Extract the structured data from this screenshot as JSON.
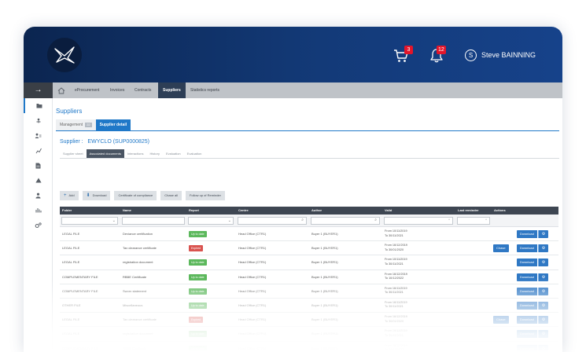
{
  "header": {
    "cart_count": "3",
    "notif_count": "12",
    "user_initial": "S",
    "user_name": "Steve BAINNING",
    "gradient_start": "#0b2550",
    "gradient_end": "#16428a"
  },
  "nav": {
    "items": [
      {
        "label": "eProcurement"
      },
      {
        "label": "Invoices"
      },
      {
        "label": "Contracts"
      },
      {
        "label": "Suppliers"
      },
      {
        "label": "Statistics reports"
      }
    ],
    "active_color": "#2d3e56"
  },
  "sidebar": {
    "icons": [
      "folder-icon",
      "tree-icon",
      "people-icon",
      "chart-line-icon",
      "document-icon",
      "warning-icon",
      "user-icon",
      "bar-chart-icon",
      "settings-icon"
    ]
  },
  "page": {
    "title": "Suppliers",
    "tabs": [
      {
        "label": "Management",
        "count": "22"
      },
      {
        "label": "Supplier detail"
      }
    ],
    "supplier_label": "Supplier :",
    "supplier_name": "EWYCLO (SUP0000825)",
    "subtabs": [
      "Supplier sheet",
      "Associated documents",
      "Interactions",
      "History",
      "Evaluation",
      "Evaluation"
    ],
    "accent": "#1f78c8"
  },
  "toolbar": {
    "add": "Add",
    "download": "Download",
    "certificate": "Certificate of compliance",
    "chase_all": "Chase all",
    "follow_up": "Follow up of Reminder"
  },
  "table": {
    "columns": [
      "Folder",
      "Name",
      "Report",
      "Centre",
      "Author",
      "Valid",
      "Last reminder",
      "Actions"
    ],
    "download_label": "Download",
    "chase_label": "Chase",
    "rows": [
      {
        "folder": "LEGAL FILE",
        "name": "Deviance certification",
        "report": "Up to date",
        "status": "green",
        "centre": "Head Office (CTR1)",
        "author": "Buyer 1 (BUYER1)",
        "valid_from": "From 10/11/2019",
        "valid_to": "To 30/11/2021",
        "chase": false
      },
      {
        "folder": "LEGAL FILE",
        "name": "Tax clearance certificate",
        "report": "Expired",
        "status": "red",
        "centre": "Head Office (CTR1)",
        "author": "Buyer 1 (BUYER1)",
        "valid_from": "From 16/12/2019",
        "valid_to": "To 30/01/2020",
        "chase": true
      },
      {
        "folder": "LEGAL FILE",
        "name": "registration document",
        "report": "Up to date",
        "status": "green",
        "centre": "Head Office (CTR1)",
        "author": "Buyer 1 (BUYER1)",
        "valid_from": "From 10/11/2019",
        "valid_to": "To 30/11/2021",
        "chase": false
      },
      {
        "folder": "COMPLEMENTARY FILE",
        "name": "RBBE Certificate",
        "report": "Up to date",
        "status": "green",
        "centre": "Head Office (CTR1)",
        "author": "Buyer 1 (BUYER1)",
        "valid_from": "From 16/12/2019",
        "valid_to": "To 10/12/2022",
        "chase": false
      },
      {
        "folder": "COMPLEMENTARY FILE",
        "name": "Sworn statement",
        "report": "Up to date",
        "status": "green",
        "centre": "Head Office (CTR1)",
        "author": "Buyer 1 (BUYER1)",
        "valid_from": "From 16/11/2019",
        "valid_to": "To 30/11/2021",
        "chase": false
      },
      {
        "folder": "OTHER FILE",
        "name": "Miscellaneous",
        "report": "Up to date",
        "status": "green",
        "centre": "Head Office (CTR1)",
        "author": "Buyer 1 (BUYER1)",
        "valid_from": "From 16/11/2019",
        "valid_to": "To 30/11/2021",
        "chase": false
      },
      {
        "folder": "LEGAL FILE",
        "name": "Tax clearance certificate",
        "report": "Expired",
        "status": "red",
        "centre": "Head Office (CTR1)",
        "author": "Buyer 1 (BUYER1)",
        "valid_from": "From 16/12/2019",
        "valid_to": "To 30/01/2020",
        "chase": true
      },
      {
        "folder": "LEGAL FILE",
        "name": "registration document",
        "report": "Up to date",
        "status": "green",
        "centre": "Head Office (CTR1)",
        "author": "Buyer 1 (BUYER1)",
        "valid_from": "From 10/11/2019",
        "valid_to": "To 30/11/2021",
        "chase": false
      },
      {
        "folder": "COMPLEMENTARY FILE",
        "name": "RBBE Certificate",
        "report": "Up to date",
        "status": "green",
        "centre": "Head Office (CTR1)",
        "author": "Buyer 1 (BUYER1)",
        "valid_from": "From 16/12/2019",
        "valid_to": "To 10/12/2022",
        "chase": false
      }
    ]
  }
}
